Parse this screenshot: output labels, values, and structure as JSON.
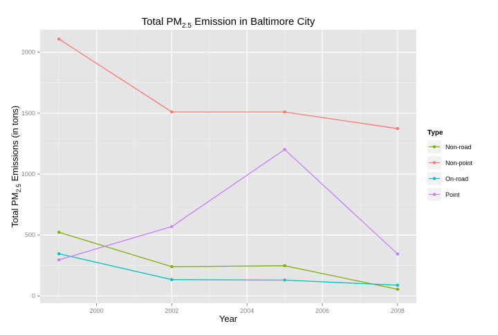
{
  "chart_data": {
    "type": "line",
    "title": {
      "main": "Total PM",
      "sub": "2.5",
      "rest": " Emission in Baltimore City"
    },
    "xlabel": "Year",
    "ylabel": {
      "main": "Total PM",
      "sub": "2.5",
      "rest": " Emissions (in tons)"
    },
    "x": [
      1999,
      2002,
      2005,
      2008
    ],
    "xlim": [
      1998.5,
      2008.5
    ],
    "ylim": [
      -60,
      2185
    ],
    "x_ticks": [
      "2000",
      "2002",
      "2004",
      "2006",
      "2008"
    ],
    "y_ticks": [
      "0",
      "500",
      "1000",
      "1500",
      "2000"
    ],
    "grid": true,
    "legend": {
      "title": "Type",
      "placement": "right"
    },
    "series": [
      {
        "name": "Non-road",
        "color": "#7CAE00",
        "values": [
          522,
          240,
          248,
          55
        ]
      },
      {
        "name": "Non-point",
        "color": "#F8766D",
        "values": [
          2108,
          1510,
          1510,
          1373
        ]
      },
      {
        "name": "On-road",
        "color": "#00BFC4",
        "values": [
          346,
          134,
          130,
          88
        ]
      },
      {
        "name": "Point",
        "color": "#C77CFF",
        "values": [
          296,
          569,
          1202,
          344
        ]
      }
    ]
  }
}
